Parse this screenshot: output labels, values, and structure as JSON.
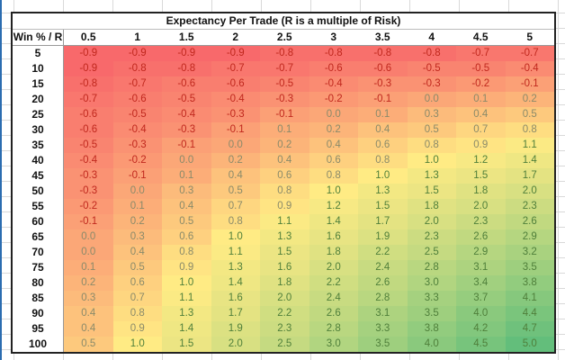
{
  "title": "Expectancy Per Trade (R is a multiple of Risk)",
  "corner_label": "Win % / R",
  "r_values": [
    "0.5",
    "1",
    "1.5",
    "2",
    "2.5",
    "3",
    "3.5",
    "4",
    "4.5",
    "5"
  ],
  "colors": {
    "low": "#f8696b",
    "mid": "#ffeb84",
    "high": "#63be7b",
    "neg_text": "#c0281e",
    "pos_text": "#4f7f3a",
    "border": "#222222"
  },
  "rows": [
    {
      "win": "5",
      "values": [
        "-0.9",
        "-0.9",
        "-0.9",
        "-0.9",
        "-0.8",
        "-0.8",
        "-0.8",
        "-0.8",
        "-0.7",
        "-0.7"
      ]
    },
    {
      "win": "10",
      "values": [
        "-0.9",
        "-0.8",
        "-0.8",
        "-0.7",
        "-0.7",
        "-0.6",
        "-0.6",
        "-0.5",
        "-0.5",
        "-0.4"
      ]
    },
    {
      "win": "15",
      "values": [
        "-0.8",
        "-0.7",
        "-0.6",
        "-0.6",
        "-0.5",
        "-0.4",
        "-0.3",
        "-0.3",
        "-0.2",
        "-0.1"
      ]
    },
    {
      "win": "20",
      "values": [
        "-0.7",
        "-0.6",
        "-0.5",
        "-0.4",
        "-0.3",
        "-0.2",
        "-0.1",
        "0.0",
        "0.1",
        "0.2"
      ]
    },
    {
      "win": "25",
      "values": [
        "-0.6",
        "-0.5",
        "-0.4",
        "-0.3",
        "-0.1",
        "0.0",
        "0.1",
        "0.3",
        "0.4",
        "0.5"
      ]
    },
    {
      "win": "30",
      "values": [
        "-0.6",
        "-0.4",
        "-0.3",
        "-0.1",
        "0.1",
        "0.2",
        "0.4",
        "0.5",
        "0.7",
        "0.8"
      ]
    },
    {
      "win": "35",
      "values": [
        "-0.5",
        "-0.3",
        "-0.1",
        "0.0",
        "0.2",
        "0.4",
        "0.6",
        "0.8",
        "0.9",
        "1.1"
      ]
    },
    {
      "win": "40",
      "values": [
        "-0.4",
        "-0.2",
        "0.0",
        "0.2",
        "0.4",
        "0.6",
        "0.8",
        "1.0",
        "1.2",
        "1.4"
      ]
    },
    {
      "win": "45",
      "values": [
        "-0.3",
        "-0.1",
        "0.1",
        "0.4",
        "0.6",
        "0.8",
        "1.0",
        "1.3",
        "1.5",
        "1.7"
      ]
    },
    {
      "win": "50",
      "values": [
        "-0.3",
        "0.0",
        "0.3",
        "0.5",
        "0.8",
        "1.0",
        "1.3",
        "1.5",
        "1.8",
        "2.0"
      ]
    },
    {
      "win": "55",
      "values": [
        "-0.2",
        "0.1",
        "0.4",
        "0.7",
        "0.9",
        "1.2",
        "1.5",
        "1.8",
        "2.0",
        "2.3"
      ]
    },
    {
      "win": "60",
      "values": [
        "-0.1",
        "0.2",
        "0.5",
        "0.8",
        "1.1",
        "1.4",
        "1.7",
        "2.0",
        "2.3",
        "2.6"
      ]
    },
    {
      "win": "65",
      "values": [
        "0.0",
        "0.3",
        "0.6",
        "1.0",
        "1.3",
        "1.6",
        "1.9",
        "2.3",
        "2.6",
        "2.9"
      ]
    },
    {
      "win": "70",
      "values": [
        "0.0",
        "0.4",
        "0.8",
        "1.1",
        "1.5",
        "1.8",
        "2.2",
        "2.5",
        "2.9",
        "3.2"
      ]
    },
    {
      "win": "75",
      "values": [
        "0.1",
        "0.5",
        "0.9",
        "1.3",
        "1.6",
        "2.0",
        "2.4",
        "2.8",
        "3.1",
        "3.5"
      ]
    },
    {
      "win": "80",
      "values": [
        "0.2",
        "0.6",
        "1.0",
        "1.4",
        "1.8",
        "2.2",
        "2.6",
        "3.0",
        "3.4",
        "3.8"
      ]
    },
    {
      "win": "85",
      "values": [
        "0.3",
        "0.7",
        "1.1",
        "1.6",
        "2.0",
        "2.4",
        "2.8",
        "3.3",
        "3.7",
        "4.1"
      ]
    },
    {
      "win": "90",
      "values": [
        "0.4",
        "0.8",
        "1.3",
        "1.7",
        "2.2",
        "2.6",
        "3.1",
        "3.5",
        "4.0",
        "4.4"
      ]
    },
    {
      "win": "95",
      "values": [
        "0.4",
        "0.9",
        "1.4",
        "1.9",
        "2.3",
        "2.8",
        "3.3",
        "3.8",
        "4.2",
        "4.7"
      ]
    },
    {
      "win": "100",
      "values": [
        "0.5",
        "1.0",
        "1.5",
        "2.0",
        "2.5",
        "3.0",
        "3.5",
        "4.0",
        "4.5",
        "5.0"
      ]
    }
  ]
}
